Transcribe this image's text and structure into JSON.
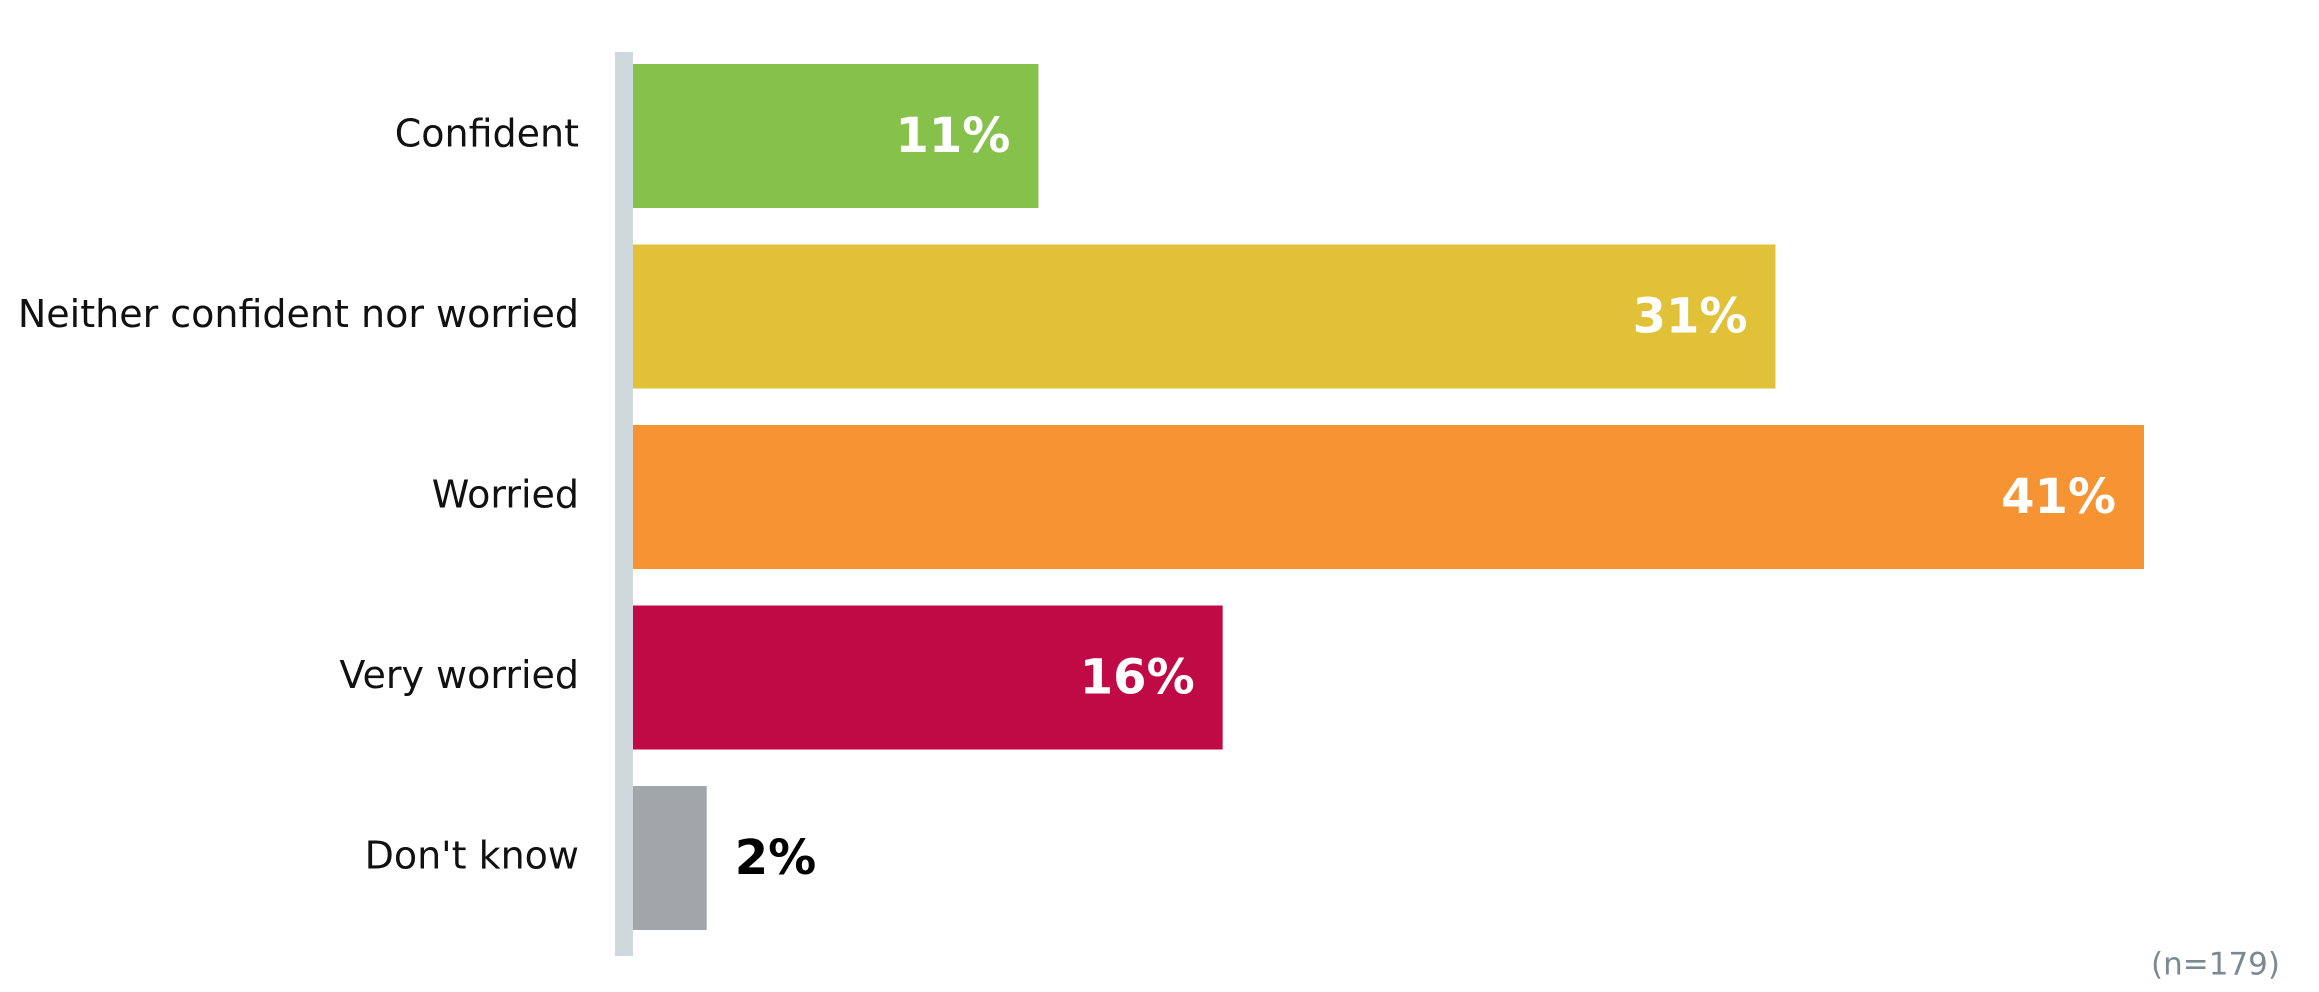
{
  "chart_data": {
    "type": "bar",
    "orientation": "horizontal",
    "categories": [
      "Confident",
      "Neither confident nor worried",
      "Worried",
      "Very worried",
      "Don't know"
    ],
    "values": [
      11,
      31,
      41,
      16,
      2
    ],
    "value_labels": [
      "11%",
      "31%",
      "41%",
      "16%",
      "2%"
    ],
    "colors": [
      "#86c24b",
      "#e0c137",
      "#f69333",
      "#c00a46",
      "#a1a6ab"
    ],
    "note": "(n=179)"
  }
}
